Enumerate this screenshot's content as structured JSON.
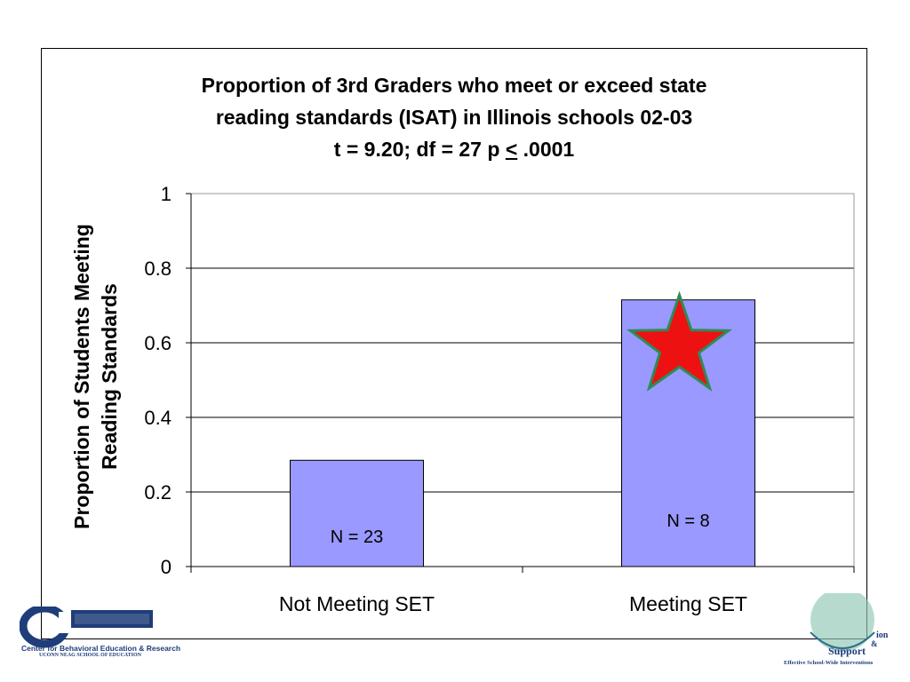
{
  "chart_data": {
    "type": "bar",
    "title_lines": [
      "Proportion of 3rd Graders  who meet or exceed state",
      "reading standards (ISAT) in Illinois schools 02-03"
    ],
    "subtitle_prefix": "t = 9.20; df = 27 p ",
    "subtitle_symbol": "<",
    "subtitle_suffix": " .0001",
    "ylabel_lines": [
      "Proportion of  Students Meeting",
      "Reading Standards"
    ],
    "xlabel": "",
    "categories": [
      "Not Meeting SET",
      "Meeting SET"
    ],
    "values": [
      0.285,
      0.715
    ],
    "bar_labels": [
      "N = 23",
      "N = 8"
    ],
    "ylim": [
      0,
      1
    ],
    "yticks": [
      0,
      0.2,
      0.4,
      0.6,
      0.8,
      1
    ],
    "ytick_labels": [
      "0",
      "0.2",
      "0.4",
      "0.6",
      "0.8",
      "1"
    ],
    "grid": true,
    "bar_color": "#9999ff",
    "annotation": {
      "shape": "star",
      "category": "Meeting SET",
      "y": 0.59,
      "fill": "#ee1111",
      "stroke": "#2e8b57"
    }
  },
  "logos": {
    "left_lines": [
      "Center for Behavioral Education & Research",
      "UCONN NEAG SCHOOL OF EDUCATION"
    ],
    "right_lines": [
      "ion",
      "&",
      "Support",
      "Effective School-Wide Interventions"
    ]
  }
}
